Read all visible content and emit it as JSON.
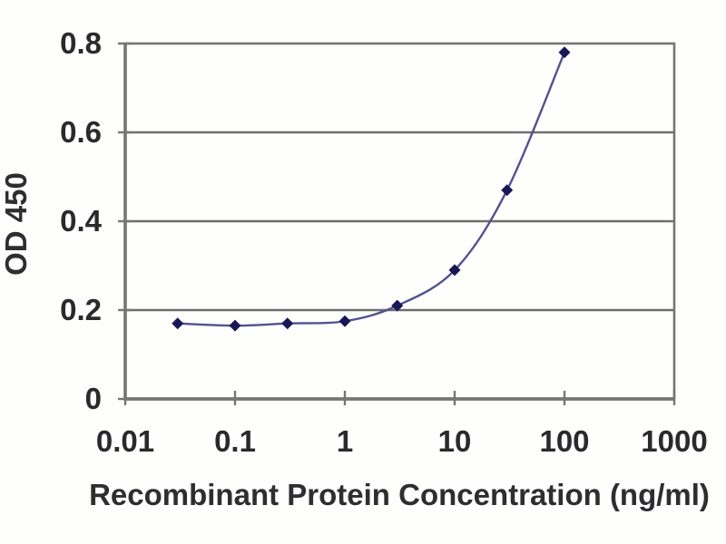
{
  "chart_data": {
    "type": "line",
    "title": "",
    "xlabel": "Recombinant Protein Concentration (ng/ml)",
    "ylabel": "OD 450",
    "x_scale": "log",
    "x": [
      0.03,
      0.1,
      0.3,
      1,
      3,
      10,
      30,
      100
    ],
    "y": [
      0.17,
      0.165,
      0.17,
      0.175,
      0.21,
      0.29,
      0.47,
      0.78
    ],
    "x_tick_labels": [
      "0.01",
      "0.1",
      "1",
      "10",
      "100",
      "1000"
    ],
    "x_tick_values": [
      0.01,
      0.1,
      1,
      10,
      100,
      1000
    ],
    "y_tick_labels": [
      "0",
      "0.2",
      "0.4",
      "0.6",
      "0.8"
    ],
    "y_tick_values": [
      0,
      0.2,
      0.4,
      0.6,
      0.8
    ],
    "xlim": [
      0.01,
      1000
    ],
    "ylim": [
      0,
      0.8
    ],
    "grid": "horizontal",
    "legend": "none",
    "marker": "diamond",
    "line_style": "smooth",
    "colors": {
      "line": "#52528e",
      "marker": "#181858",
      "grid": "#6e6e6e",
      "axis": "#757575",
      "text": "#2a2a2e",
      "background": "#fefefc"
    }
  }
}
